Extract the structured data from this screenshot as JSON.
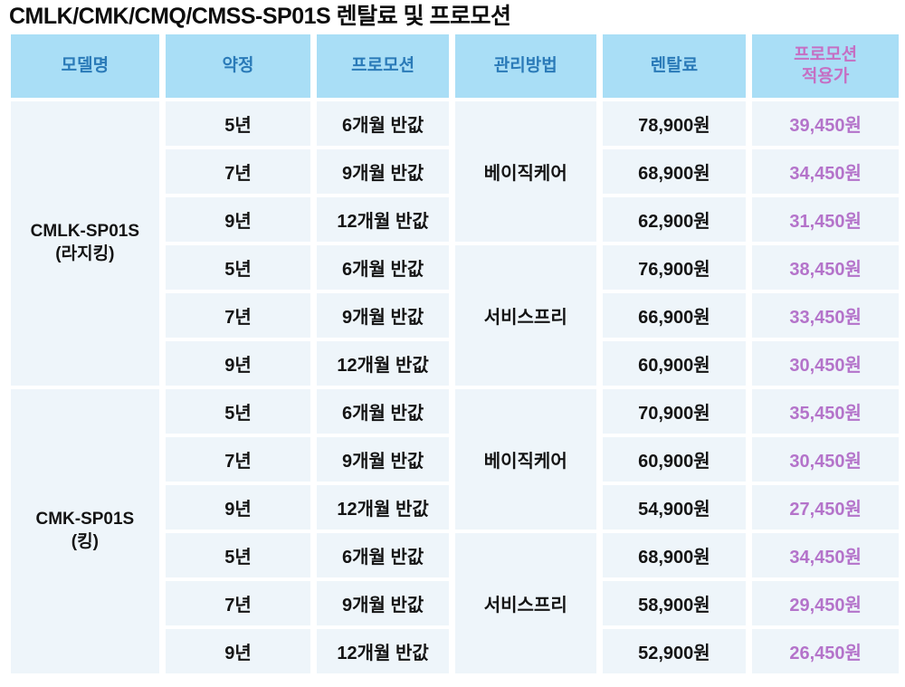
{
  "title": "CMLK/CMK/CMQ/CMSS-SP01S 렌탈료 및 프로모션",
  "colors": {
    "header_bg": "#A9DEF6",
    "header_text_blue": "#2A7AB8",
    "header_text_pink": "#C56FC3",
    "cell_bg": "#EEF5FA",
    "body_text": "#141414",
    "promo_price": "#B473CA"
  },
  "table": {
    "headers": {
      "model": "모델명",
      "term": "약정",
      "promotion": "프로모션",
      "care": "관리방법",
      "rental": "렌탈료",
      "promo_price": "프로모션\n적용가"
    },
    "groups": [
      {
        "model": "CMLK-SP01S",
        "model_sub": "(라지킹)",
        "care_groups": [
          {
            "care": "베이직케어",
            "rows": [
              {
                "term": "5년",
                "promo": "6개월 반값",
                "rental": "78,900원",
                "promo_price": "39,450원"
              },
              {
                "term": "7년",
                "promo": "9개월 반값",
                "rental": "68,900원",
                "promo_price": "34,450원"
              },
              {
                "term": "9년",
                "promo": "12개월 반값",
                "rental": "62,900원",
                "promo_price": "31,450원"
              }
            ]
          },
          {
            "care": "서비스프리",
            "rows": [
              {
                "term": "5년",
                "promo": "6개월 반값",
                "rental": "76,900원",
                "promo_price": "38,450원"
              },
              {
                "term": "7년",
                "promo": "9개월 반값",
                "rental": "66,900원",
                "promo_price": "33,450원"
              },
              {
                "term": "9년",
                "promo": "12개월 반값",
                "rental": "60,900원",
                "promo_price": "30,450원"
              }
            ]
          }
        ]
      },
      {
        "model": "CMK-SP01S",
        "model_sub": "(킹)",
        "care_groups": [
          {
            "care": "베이직케어",
            "rows": [
              {
                "term": "5년",
                "promo": "6개월 반값",
                "rental": "70,900원",
                "promo_price": "35,450원"
              },
              {
                "term": "7년",
                "promo": "9개월 반값",
                "rental": "60,900원",
                "promo_price": "30,450원"
              },
              {
                "term": "9년",
                "promo": "12개월 반값",
                "rental": "54,900원",
                "promo_price": "27,450원"
              }
            ]
          },
          {
            "care": "서비스프리",
            "rows": [
              {
                "term": "5년",
                "promo": "6개월 반값",
                "rental": "68,900원",
                "promo_price": "34,450원"
              },
              {
                "term": "7년",
                "promo": "9개월 반값",
                "rental": "58,900원",
                "promo_price": "29,450원"
              },
              {
                "term": "9년",
                "promo": "12개월 반값",
                "rental": "52,900원",
                "promo_price": "26,450원"
              }
            ]
          }
        ]
      }
    ]
  }
}
